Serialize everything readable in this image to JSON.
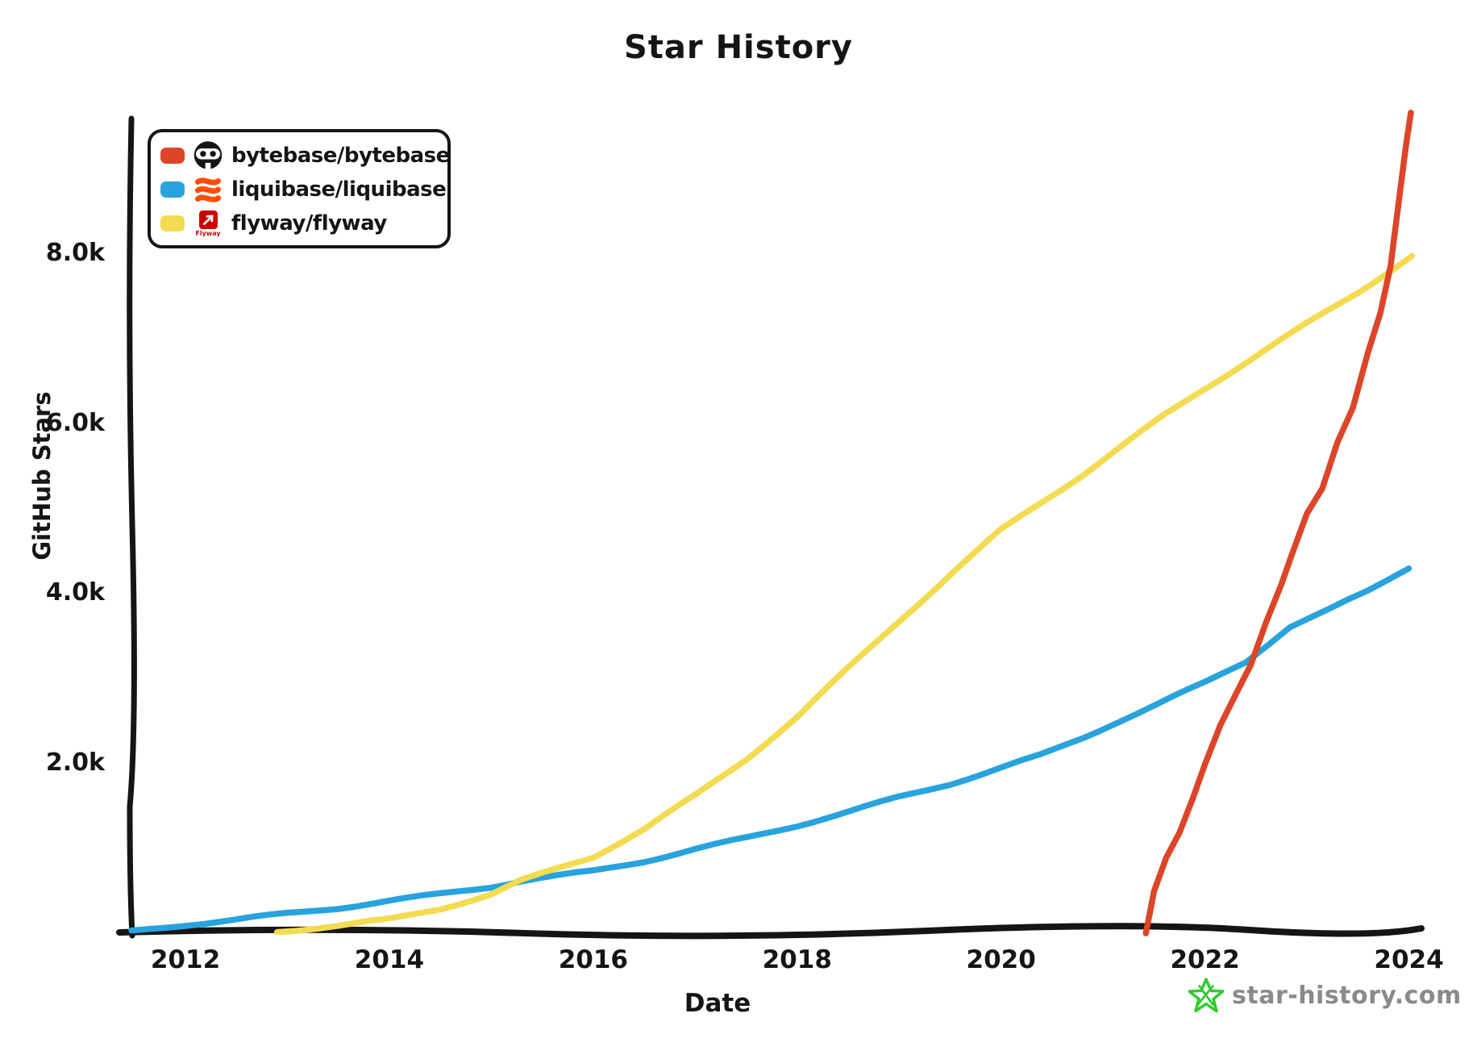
{
  "title": "Star History",
  "axes": {
    "x_label": "Date",
    "y_label": "GitHub Stars"
  },
  "legend": [
    {
      "label": "bytebase/bytebase",
      "color": "#DD4528",
      "icon": "bytebase-logo",
      "icon_color": "#161616"
    },
    {
      "label": "liquibase/liquibase",
      "color": "#28A3DD",
      "icon": "liquibase-logo",
      "icon_color": "#FF4E00"
    },
    {
      "label": "flyway/flyway",
      "color": "#F3DB52",
      "icon": "flyway-logo",
      "icon_color": "#CC0200",
      "icon_caption": "Flyway"
    }
  ],
  "footer": {
    "brand": "star-history.com",
    "star_color": "#2FCB2F",
    "text_color": "#8A8A8A"
  },
  "chart_data": {
    "type": "line",
    "title": "Star History",
    "xlabel": "Date",
    "ylabel": "GitHub Stars",
    "xlim": [
      2011.3,
      2024.3
    ],
    "ylim": [
      0,
      9800
    ],
    "grid": false,
    "legend_position": "top-left",
    "x_ticks": [
      {
        "label": "2012",
        "year": 2012
      },
      {
        "label": "2014",
        "year": 2014
      },
      {
        "label": "2016",
        "year": 2016
      },
      {
        "label": "2018",
        "year": 2018
      },
      {
        "label": "2020",
        "year": 2020
      },
      {
        "label": "2022",
        "year": 2022
      },
      {
        "label": "2024",
        "year": 2024
      }
    ],
    "y_ticks": [
      {
        "label": "2.0k",
        "value": 2000
      },
      {
        "label": "4.0k",
        "value": 4000
      },
      {
        "label": "6.0k",
        "value": 6000
      },
      {
        "label": "8.0k",
        "value": 8000
      }
    ],
    "series": [
      {
        "name": "liquibase/liquibase",
        "color": "#28A3DD",
        "points": [
          [
            2011.47,
            20
          ],
          [
            2012.0,
            100
          ],
          [
            2012.5,
            160
          ],
          [
            2013.0,
            230
          ],
          [
            2013.5,
            300
          ],
          [
            2014.0,
            380
          ],
          [
            2014.5,
            460
          ],
          [
            2015.0,
            550
          ],
          [
            2015.3,
            620
          ],
          [
            2016.0,
            730
          ],
          [
            2016.5,
            850
          ],
          [
            2017.0,
            990
          ],
          [
            2017.5,
            1120
          ],
          [
            2018.0,
            1270
          ],
          [
            2018.5,
            1430
          ],
          [
            2019.0,
            1600
          ],
          [
            2019.5,
            1760
          ],
          [
            2020.0,
            1950
          ],
          [
            2020.4,
            2100
          ],
          [
            2020.8,
            2300
          ],
          [
            2021.1,
            2470
          ],
          [
            2021.5,
            2680
          ],
          [
            2022.0,
            2950
          ],
          [
            2022.4,
            3200
          ],
          [
            2022.83,
            3610
          ],
          [
            2023.2,
            3800
          ],
          [
            2023.6,
            4030
          ],
          [
            2024.0,
            4310
          ]
        ]
      },
      {
        "name": "flyway/flyway",
        "color": "#F3DB52",
        "points": [
          [
            2012.9,
            20
          ],
          [
            2013.5,
            90
          ],
          [
            2014.0,
            160
          ],
          [
            2014.5,
            290
          ],
          [
            2015.0,
            460
          ],
          [
            2015.3,
            620
          ],
          [
            2016.0,
            900
          ],
          [
            2016.5,
            1230
          ],
          [
            2017.0,
            1620
          ],
          [
            2017.5,
            2050
          ],
          [
            2018.0,
            2550
          ],
          [
            2018.5,
            3120
          ],
          [
            2019.0,
            3680
          ],
          [
            2019.5,
            4220
          ],
          [
            2020.0,
            4750
          ],
          [
            2020.4,
            5080
          ],
          [
            2020.8,
            5400
          ],
          [
            2021.2,
            5750
          ],
          [
            2021.6,
            6100
          ],
          [
            2022.0,
            6420
          ],
          [
            2022.5,
            6800
          ],
          [
            2023.0,
            7180
          ],
          [
            2023.5,
            7550
          ],
          [
            2024.03,
            7980
          ]
        ]
      },
      {
        "name": "bytebase/bytebase",
        "color": "#DD4528",
        "points": [
          [
            2021.42,
            0
          ],
          [
            2021.5,
            500
          ],
          [
            2021.62,
            900
          ],
          [
            2021.75,
            1200
          ],
          [
            2021.88,
            1600
          ],
          [
            2022.0,
            2000
          ],
          [
            2022.15,
            2450
          ],
          [
            2022.3,
            2800
          ],
          [
            2022.45,
            3150
          ],
          [
            2022.6,
            3650
          ],
          [
            2022.75,
            4100
          ],
          [
            2022.85,
            4450
          ],
          [
            2023.0,
            4950
          ],
          [
            2023.15,
            5250
          ],
          [
            2023.3,
            5800
          ],
          [
            2023.45,
            6200
          ],
          [
            2023.6,
            6850
          ],
          [
            2023.72,
            7300
          ],
          [
            2023.82,
            7850
          ],
          [
            2023.9,
            8600
          ],
          [
            2023.97,
            9250
          ],
          [
            2024.02,
            9650
          ]
        ]
      }
    ]
  }
}
